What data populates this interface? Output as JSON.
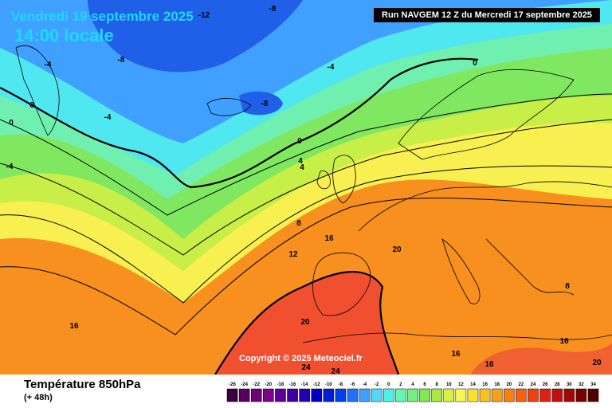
{
  "header": {
    "date": "Vendredi 19 septembre 2025",
    "time": "14:00 locale",
    "run": "Run NAVGEM 12 Z du Mercredi 17 septembre 2025"
  },
  "footer": {
    "title": "Température 850hPa",
    "lead": "(+ 48h)",
    "copyright": "Copyright © 2025 Meteociel.fr"
  },
  "scale": {
    "ticks": [
      "-26",
      "-24",
      "-22",
      "-20",
      "-18",
      "-16",
      "-14",
      "-12",
      "-10",
      "-8",
      "-6",
      "-4",
      "-2",
      "0",
      "2",
      "4",
      "6",
      "8",
      "10",
      "12",
      "14",
      "16",
      "18",
      "20",
      "22",
      "24",
      "26",
      "28",
      "30",
      "32",
      "34"
    ],
    "colors": [
      "#3a0040",
      "#55005c",
      "#6e0078",
      "#800090",
      "#600098",
      "#4000a0",
      "#2000b0",
      "#0000c0",
      "#0020d8",
      "#0040ee",
      "#2070ff",
      "#40a0ff",
      "#50d8ff",
      "#50f0e8",
      "#60f8b0",
      "#70f080",
      "#80e850",
      "#a8e840",
      "#d8f040",
      "#f8f850",
      "#f8e030",
      "#f8c020",
      "#f8a018",
      "#f88010",
      "#f86010",
      "#f04010",
      "#e02010",
      "#c01010",
      "#a00808",
      "#780000",
      "#500000"
    ]
  },
  "contour_labels": [
    {
      "text": "-12"
    },
    {
      "text": "-8"
    },
    {
      "text": "-8"
    },
    {
      "text": "-8"
    },
    {
      "text": "-4"
    },
    {
      "text": "-4"
    },
    {
      "text": "-4"
    },
    {
      "text": "-4"
    },
    {
      "text": "0"
    },
    {
      "text": "0"
    },
    {
      "text": "0"
    },
    {
      "text": "0"
    },
    {
      "text": "4"
    },
    {
      "text": "4"
    },
    {
      "text": "8"
    },
    {
      "text": "8"
    },
    {
      "text": "12"
    },
    {
      "text": "16"
    },
    {
      "text": "16"
    },
    {
      "text": "16"
    },
    {
      "text": "16"
    },
    {
      "text": "16"
    },
    {
      "text": "20"
    },
    {
      "text": "20"
    },
    {
      "text": "20"
    },
    {
      "text": "24"
    },
    {
      "text": "24"
    }
  ]
}
